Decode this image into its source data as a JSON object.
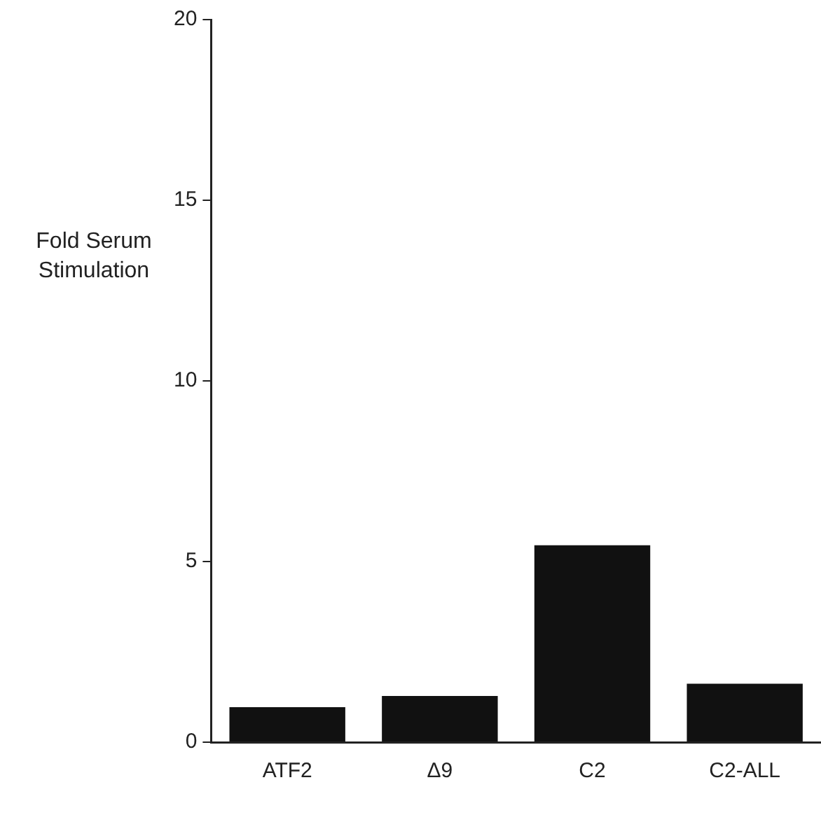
{
  "chart_data": {
    "type": "bar",
    "ylabel": "Fold Serum Stimulation",
    "categories": [
      "ATF2",
      "Δ9",
      "C2",
      "C2-ALL"
    ],
    "values": [
      0.97,
      1.28,
      5.45,
      1.62
    ],
    "color": "#111111",
    "ylim": [
      0,
      20
    ],
    "yticks": [
      0,
      5,
      10,
      15,
      20
    ],
    "grid": false,
    "legend": false
  }
}
